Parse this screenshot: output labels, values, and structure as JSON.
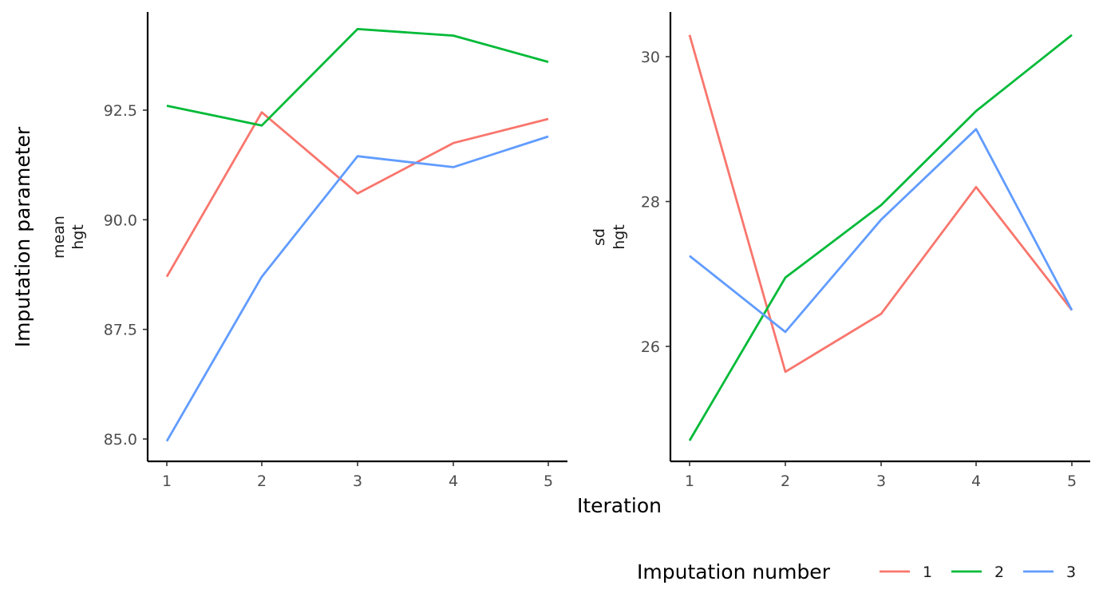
{
  "chart_data": {
    "type": "line",
    "ylabel": "Imputation parameter",
    "xlabel": "Iteration",
    "legend": {
      "title": "Imputation number",
      "position": "bottom-right",
      "entries": [
        {
          "label": "1",
          "color": "#F8766D"
        },
        {
          "label": "2",
          "color": "#00BA38"
        },
        {
          "label": "3",
          "color": "#619CFF"
        }
      ]
    },
    "grid": false,
    "panels": [
      {
        "label_line1": "mean",
        "label_line2": "hgt",
        "x": [
          1,
          2,
          3,
          4,
          5
        ],
        "x_tick_labels": [
          "1",
          "2",
          "3",
          "4",
          "5"
        ],
        "y_ticks": [
          85.0,
          87.5,
          90.0,
          92.5
        ],
        "y_tick_labels": [
          "85.0",
          "87.5",
          "90.0",
          "92.5"
        ],
        "ylim": [
          84.5,
          95.0
        ],
        "series": [
          {
            "name": "1",
            "color": "#F8766D",
            "values": [
              88.7,
              92.45,
              90.6,
              91.75,
              92.3
            ]
          },
          {
            "name": "2",
            "color": "#00BA38",
            "values": [
              92.6,
              92.15,
              94.35,
              94.2,
              93.6
            ]
          },
          {
            "name": "3",
            "color": "#619CFF",
            "values": [
              84.95,
              88.7,
              91.45,
              91.2,
              91.9
            ]
          }
        ]
      },
      {
        "label_line1": "sd",
        "label_line2": "hgt",
        "x": [
          1,
          2,
          3,
          4,
          5
        ],
        "x_tick_labels": [
          "1",
          "2",
          "3",
          "4",
          "5"
        ],
        "y_ticks": [
          26,
          28,
          30
        ],
        "y_tick_labels": [
          "26",
          "28",
          "30"
        ],
        "ylim": [
          24.4,
          30.6
        ],
        "series": [
          {
            "name": "1",
            "color": "#F8766D",
            "values": [
              30.3,
              25.65,
              26.45,
              28.2,
              26.5
            ]
          },
          {
            "name": "2",
            "color": "#00BA38",
            "values": [
              24.7,
              26.95,
              27.95,
              29.25,
              30.3
            ]
          },
          {
            "name": "3",
            "color": "#619CFF",
            "values": [
              27.25,
              26.2,
              27.75,
              29.0,
              26.5
            ]
          }
        ]
      }
    ]
  }
}
